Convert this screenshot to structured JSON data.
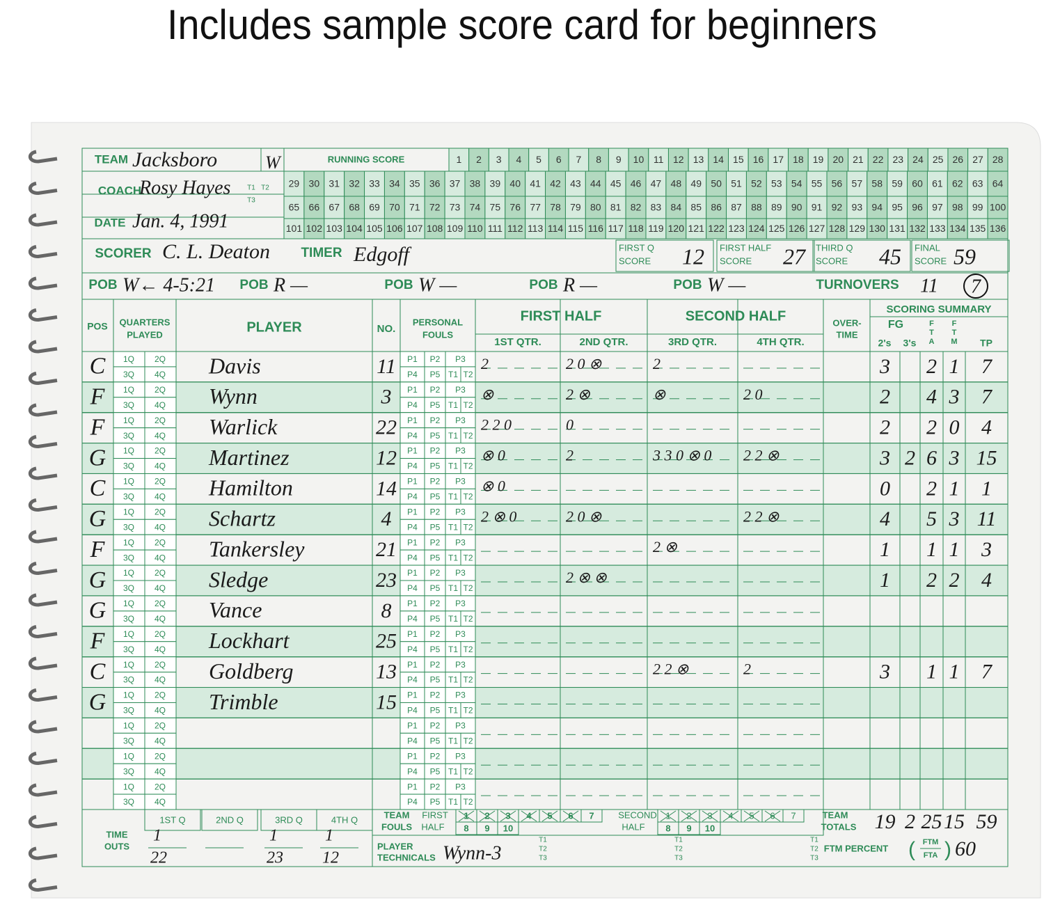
{
  "title": "Includes sample score card for beginners",
  "header": {
    "team_label": "TEAM",
    "team": "Jacksboro",
    "result": "W",
    "coach_label": "COACH",
    "coach": "Rosy Hayes",
    "t_labels": [
      "T1",
      "T2",
      "T3"
    ],
    "date_label": "DATE",
    "date": "Jan. 4, 1991",
    "scorer_label": "SCORER",
    "scorer": "C. L. Deaton",
    "timer_label": "TIMER",
    "timer": "Edgoff",
    "running_score_label": "RUNNING SCORE",
    "running_score": [
      [
        1,
        2,
        3,
        4,
        5,
        6,
        7,
        8,
        9,
        10,
        11,
        12,
        13,
        14,
        15,
        16,
        17,
        18,
        19,
        20,
        21,
        22,
        23,
        24,
        25,
        26,
        27,
        28
      ],
      [
        29,
        30,
        31,
        32,
        33,
        34,
        35,
        36,
        37,
        38,
        39,
        40,
        41,
        42,
        43,
        44,
        45,
        46,
        47,
        48,
        49,
        50,
        51,
        52,
        53,
        54,
        55,
        56,
        57,
        58,
        59,
        60,
        61,
        62,
        63,
        64
      ],
      [
        65,
        66,
        67,
        68,
        69,
        70,
        71,
        72,
        73,
        74,
        75,
        76,
        77,
        78,
        79,
        80,
        81,
        82,
        83,
        84,
        85,
        86,
        87,
        88,
        89,
        90,
        91,
        92,
        93,
        94,
        95,
        96,
        97,
        98,
        99,
        100
      ],
      [
        101,
        102,
        103,
        104,
        105,
        106,
        107,
        108,
        109,
        110,
        111,
        112,
        113,
        114,
        115,
        116,
        117,
        118,
        119,
        120,
        121,
        122,
        123,
        124,
        125,
        126,
        127,
        128,
        129,
        130,
        131,
        132,
        133,
        134,
        135,
        136
      ]
    ],
    "quarter_scores": [
      {
        "label": [
          "FIRST Q",
          "SCORE"
        ],
        "value": 12
      },
      {
        "label": [
          "FIRST HALF",
          "SCORE"
        ],
        "value": 27
      },
      {
        "label": [
          "THIRD Q",
          "SCORE"
        ],
        "value": 45
      },
      {
        "label": [
          "FINAL",
          "SCORE"
        ],
        "value": 59
      }
    ],
    "pob_label": "POB",
    "pob": [
      "W← 4-5:21",
      "R —",
      "W —",
      "R —",
      "W —"
    ],
    "turnovers_label": "TURNOVERS",
    "turnovers": "11",
    "turnovers_circled": "7"
  },
  "table": {
    "headers": {
      "pos": "POS",
      "quarters_played": [
        "QUARTERS",
        "PLAYED"
      ],
      "player": "PLAYER",
      "no": "NO.",
      "fouls": [
        "PERSONAL",
        "FOULS"
      ],
      "first_half": "FIRST HALF",
      "second_half": "SECOND HALF",
      "quarters": [
        "1ST QTR.",
        "2ND QTR.",
        "3RD QTR.",
        "4TH QTR."
      ],
      "overtime": [
        "OVER-",
        "TIME"
      ],
      "scoring_summary": "SCORING SUMMARY",
      "fg": "FG",
      "twos": "2's",
      "threes": "3's",
      "fta": [
        "F",
        "T",
        "A"
      ],
      "ftm": [
        "F",
        "T",
        "M"
      ],
      "tp": "TP"
    },
    "quarter_cells": [
      "1Q",
      "2Q",
      "3Q",
      "4Q"
    ],
    "foul_cells": [
      "P1",
      "P2",
      "P3",
      "P4",
      "P5",
      "T1",
      "T2"
    ],
    "players": [
      {
        "pos": "C",
        "name": "Davis",
        "no": 11,
        "marks": [
          "2",
          "2 0 ⊗",
          "2",
          null
        ],
        "twos": 3,
        "threes": null,
        "fta": 2,
        "ftm": 1,
        "tp": 7
      },
      {
        "pos": "F",
        "name": "Wynn",
        "no": 3,
        "marks": [
          "⊗",
          "2 ⊗",
          "⊗",
          "2 0"
        ],
        "twos": 2,
        "threes": null,
        "fta": 4,
        "ftm": 3,
        "tp": 7
      },
      {
        "pos": "F",
        "name": "Warlick",
        "no": 22,
        "marks": [
          "2 2 0",
          "0",
          null,
          null
        ],
        "twos": 2,
        "threes": null,
        "fta": 2,
        "ftm": 0,
        "tp": 4
      },
      {
        "pos": "G",
        "name": "Martinez",
        "no": 12,
        "marks": [
          "⊗ 0",
          "2",
          "3 3 0 ⊗ 0",
          "2 2 ⊗"
        ],
        "twos": 3,
        "threes": 2,
        "fta": 6,
        "ftm": 3,
        "tp": 15
      },
      {
        "pos": "C",
        "name": "Hamilton",
        "no": 14,
        "marks": [
          "⊗ 0",
          null,
          null,
          null
        ],
        "twos": 0,
        "threes": null,
        "fta": 2,
        "ftm": 1,
        "tp": 1
      },
      {
        "pos": "G",
        "name": "Schartz",
        "no": 4,
        "marks": [
          "2 ⊗ 0",
          "2 0 ⊗",
          null,
          "2 2 ⊗"
        ],
        "twos": 4,
        "threes": null,
        "fta": 5,
        "ftm": 3,
        "tp": 11
      },
      {
        "pos": "F",
        "name": "Tankersley",
        "no": 21,
        "marks": [
          null,
          null,
          "2 ⊗",
          null
        ],
        "twos": 1,
        "threes": null,
        "fta": 1,
        "ftm": 1,
        "tp": 3
      },
      {
        "pos": "G",
        "name": "Sledge",
        "no": 23,
        "marks": [
          null,
          "2 ⊗ ⊗",
          null,
          null
        ],
        "twos": 1,
        "threes": null,
        "fta": 2,
        "ftm": 2,
        "tp": 4
      },
      {
        "pos": "G",
        "name": "Vance",
        "no": 8,
        "marks": [
          null,
          null,
          null,
          null
        ],
        "twos": null,
        "threes": null,
        "fta": null,
        "ftm": null,
        "tp": null
      },
      {
        "pos": "F",
        "name": "Lockhart",
        "no": 25,
        "marks": [
          null,
          null,
          null,
          null
        ],
        "twos": null,
        "threes": null,
        "fta": null,
        "ftm": null,
        "tp": null
      },
      {
        "pos": "C",
        "name": "Goldberg",
        "no": 13,
        "marks": [
          null,
          null,
          "2 2 ⊗",
          "2"
        ],
        "twos": 3,
        "threes": null,
        "fta": 1,
        "ftm": 1,
        "tp": 7
      },
      {
        "pos": "G",
        "name": "Trimble",
        "no": 15,
        "marks": [
          null,
          null,
          null,
          null
        ],
        "twos": null,
        "threes": null,
        "fta": null,
        "ftm": null,
        "tp": null
      }
    ]
  },
  "footer": {
    "time_outs_label": [
      "TIME",
      "OUTS"
    ],
    "time_out_quarters": [
      "1ST Q",
      "2ND Q",
      "3RD Q",
      "4TH Q"
    ],
    "time_outs": [
      [
        "1",
        "22"
      ],
      null,
      [
        "1",
        "23"
      ],
      [
        "1",
        "12"
      ]
    ],
    "team_fouls_label": [
      "TEAM",
      "FOULS"
    ],
    "first_half_label": [
      "FIRST",
      "HALF"
    ],
    "second_half_label": [
      "SECOND",
      "HALF"
    ],
    "foul_numbers": [
      1,
      2,
      3,
      4,
      5,
      6,
      7,
      8,
      9,
      10
    ],
    "team_totals_label": [
      "TEAM",
      "TOTALS"
    ],
    "team_totals": {
      "twos": 19,
      "threes": 2,
      "fta": 25,
      "ftm": 15,
      "tp": 59
    },
    "technicals_label": [
      "PLAYER",
      "TECHNICALS"
    ],
    "technicals": "Wynn-3",
    "ftm_percent_label": "FTM PERCENT",
    "ftm_fraction": [
      "FTM",
      "FTA"
    ],
    "ftm_percent": 60
  }
}
